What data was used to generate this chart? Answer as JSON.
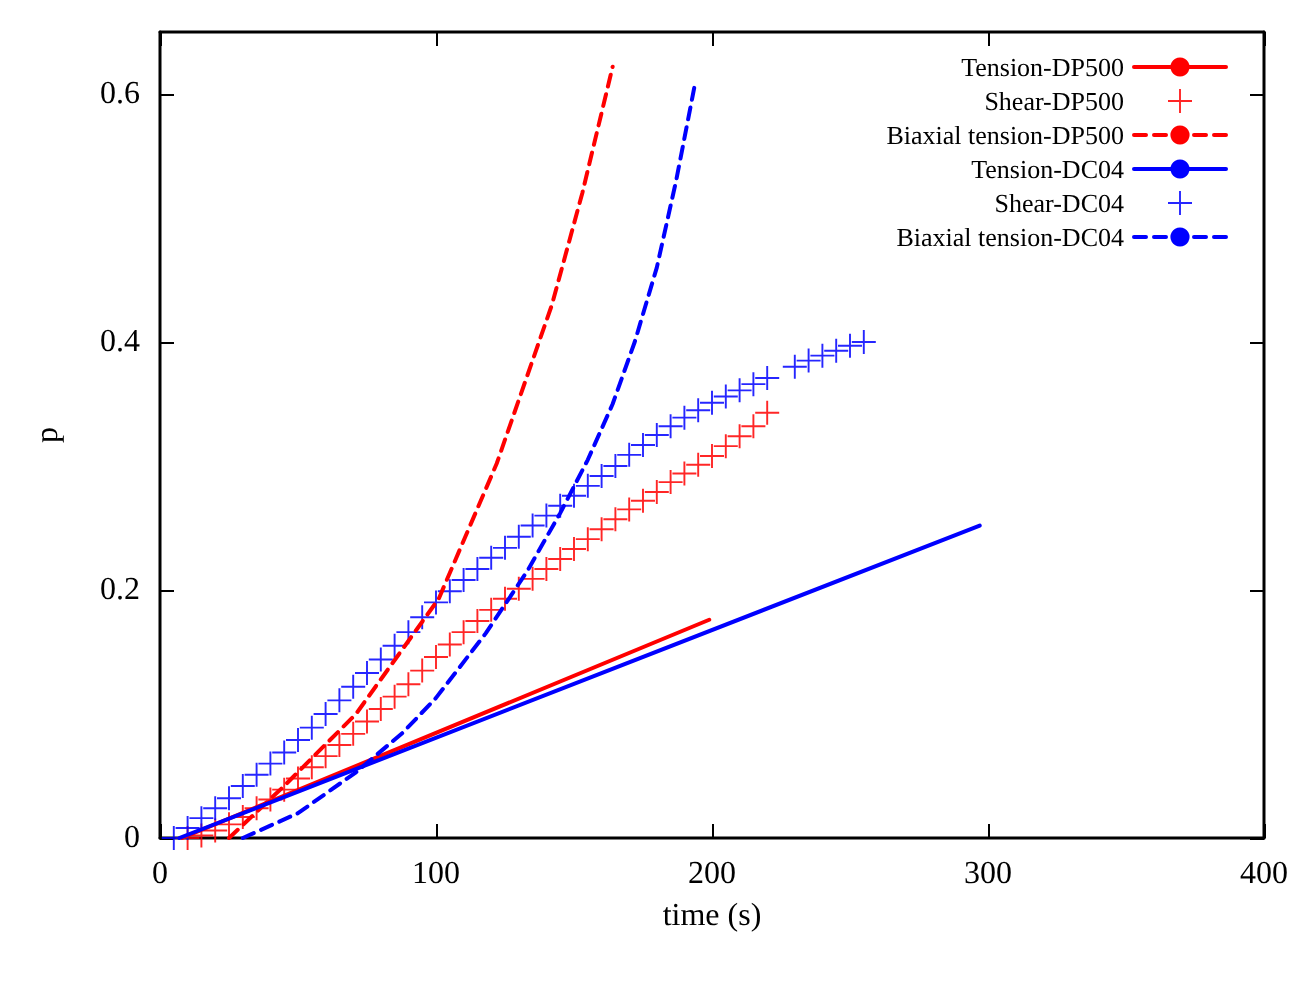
{
  "chart_data": {
    "type": "line",
    "xlabel": "time (s)",
    "ylabel": "p",
    "xlim": [
      0,
      400
    ],
    "xticks": [
      0,
      100,
      200,
      300,
      400
    ],
    "ylim": [
      0,
      0.65
    ],
    "yticks": [
      0,
      0.2,
      0.4,
      0.6
    ],
    "grid": false,
    "legend": "top right",
    "series": [
      {
        "name": "Tension-DP500",
        "color": "#ff0000",
        "line_style": "solid",
        "marker": "none",
        "x": [
          8,
          199
        ],
        "values": [
          0,
          0.176
        ]
      },
      {
        "name": "Shear-DP500",
        "type": "scatter",
        "color": "#ff0000",
        "marker": "cross",
        "x": [
          10,
          15,
          20,
          25,
          30,
          35,
          40,
          45,
          50,
          55,
          60,
          65,
          70,
          75,
          80,
          85,
          90,
          95,
          100,
          105,
          110,
          115,
          120,
          125,
          130,
          135,
          140,
          145,
          150,
          155,
          160,
          165,
          170,
          175,
          180,
          185,
          190,
          195,
          200,
          205,
          210,
          215,
          220
        ],
        "values": [
          0,
          0.002,
          0.006,
          0.011,
          0.017,
          0.024,
          0.031,
          0.039,
          0.048,
          0.057,
          0.066,
          0.075,
          0.084,
          0.094,
          0.104,
          0.114,
          0.124,
          0.135,
          0.146,
          0.156,
          0.166,
          0.175,
          0.184,
          0.193,
          0.201,
          0.209,
          0.217,
          0.225,
          0.233,
          0.241,
          0.249,
          0.257,
          0.265,
          0.272,
          0.279,
          0.287,
          0.294,
          0.301,
          0.308,
          0.316,
          0.324,
          0.332,
          0.343
        ]
      },
      {
        "name": "Biaxial tension-DP500",
        "color": "#ff0000",
        "line_style": "dashed",
        "marker": "none",
        "x": [
          25,
          45,
          71,
          101,
          122,
          142,
          153,
          164
        ],
        "values": [
          0,
          0.042,
          0.1,
          0.193,
          0.302,
          0.43,
          0.52,
          0.622
        ]
      },
      {
        "name": "Tension-DC04",
        "color": "#0000ff",
        "line_style": "solid",
        "marker": "none",
        "x": [
          7,
          297
        ],
        "values": [
          0,
          0.252
        ]
      },
      {
        "name": "Shear-DC04",
        "type": "scatter",
        "color": "#0000ff",
        "marker": "cross",
        "x": [
          5,
          10,
          15,
          20,
          25,
          30,
          35,
          40,
          45,
          50,
          55,
          60,
          65,
          70,
          75,
          80,
          85,
          90,
          95,
          100,
          105,
          110,
          115,
          120,
          125,
          130,
          135,
          140,
          145,
          150,
          155,
          160,
          165,
          170,
          175,
          180,
          185,
          190,
          195,
          200,
          205,
          210,
          215,
          220,
          230,
          235,
          240,
          245,
          250,
          255
        ],
        "values": [
          0,
          0.008,
          0.016,
          0.024,
          0.032,
          0.042,
          0.051,
          0.06,
          0.069,
          0.079,
          0.089,
          0.1,
          0.111,
          0.122,
          0.133,
          0.144,
          0.155,
          0.166,
          0.178,
          0.19,
          0.199,
          0.208,
          0.217,
          0.226,
          0.234,
          0.243,
          0.252,
          0.26,
          0.268,
          0.276,
          0.284,
          0.292,
          0.3,
          0.309,
          0.317,
          0.325,
          0.332,
          0.339,
          0.345,
          0.351,
          0.356,
          0.361,
          0.366,
          0.371,
          0.38,
          0.385,
          0.389,
          0.393,
          0.397,
          0.4
        ]
      },
      {
        "name": "Biaxial tension-DC04",
        "color": "#0000ff",
        "line_style": "dashed",
        "marker": "none",
        "x": [
          30,
          50,
          71,
          88,
          100,
          118,
          133,
          145,
          155,
          164,
          172,
          180,
          187,
          194
        ],
        "values": [
          0,
          0.02,
          0.053,
          0.085,
          0.113,
          0.165,
          0.215,
          0.262,
          0.305,
          0.35,
          0.4,
          0.46,
          0.53,
          0.61
        ]
      }
    ]
  }
}
